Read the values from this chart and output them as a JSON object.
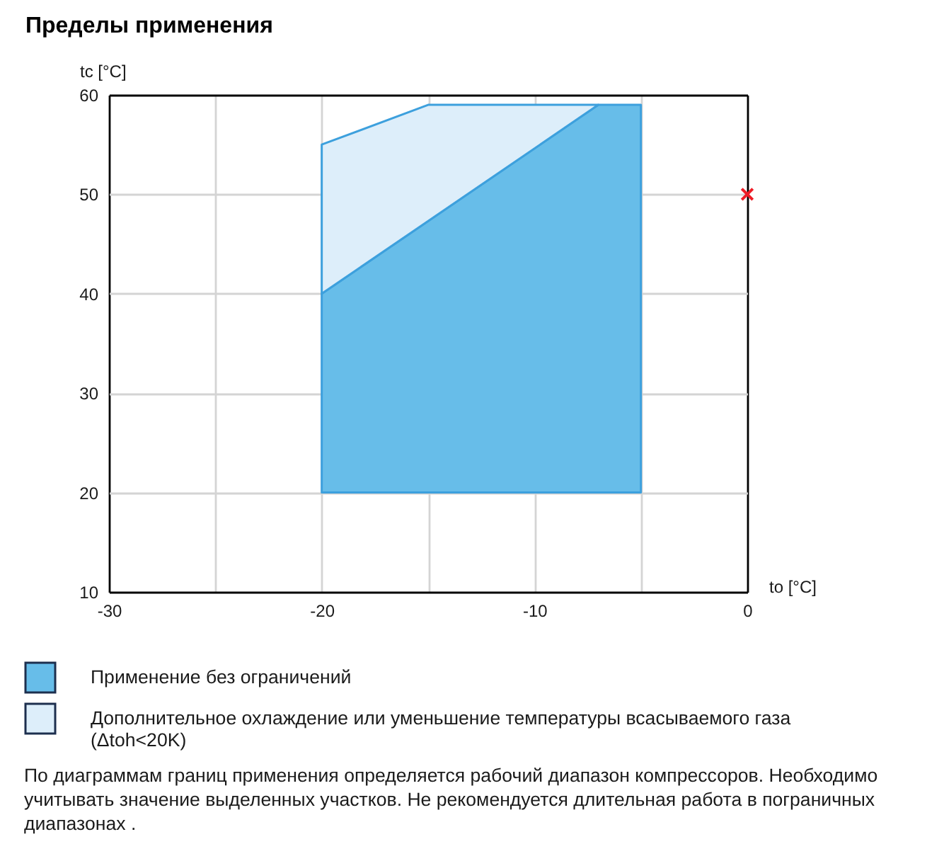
{
  "chart_data": {
    "type": "area",
    "title": "Пределы применения",
    "xlabel": "to [°C]",
    "ylabel": "tc [°C]",
    "xlim": [
      -30,
      0
    ],
    "ylim": [
      10,
      60
    ],
    "xticks": [
      -30,
      {
        "value": -25,
        "label": null
      },
      -20,
      {
        "value": -15,
        "label": null
      },
      -10,
      {
        "value": -5,
        "label": null
      },
      0
    ],
    "yticks": [
      10,
      20,
      30,
      40,
      50,
      60
    ],
    "grid": true,
    "legend": "bottom",
    "series": [
      {
        "name": "Применение без ограничений",
        "color": "#67bde9",
        "x": [
          -20,
          -7,
          -5
        ],
        "values": [
          null,
          null,
          null
        ],
        "lower": [
          20,
          20,
          20
        ],
        "upper": [
          40,
          59,
          59
        ]
      },
      {
        "name": "Дополнительное охлаждение или уменьшение температуры всасываемого газа (Δtoh<20K)",
        "color": "#ddeefa",
        "x": [
          -20,
          -15,
          -7
        ],
        "values": [
          null,
          null,
          null
        ],
        "lower": [
          40,
          47.3,
          59
        ],
        "upper": [
          55,
          59,
          59
        ]
      },
      {
        "type": "scatter",
        "color": "#ee1c25",
        "x": [
          0
        ],
        "values": [
          50
        ],
        "marker": "cross"
      }
    ],
    "annotations": [
      "По диаграммам границ применения определяется рабочий диапазон компрессоров. Необходимо учитывать значение выделенных участков. Не рекомендуется длительная работа в пограничных диапазонах ."
    ]
  }
}
